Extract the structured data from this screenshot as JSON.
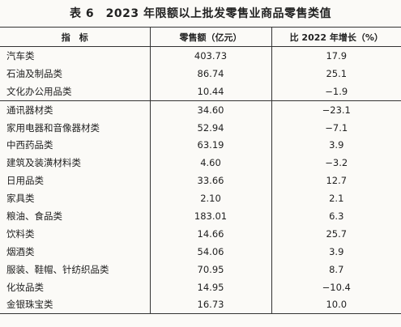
{
  "title": "表 6　2023 年限额以上批发零售业商品零售类值",
  "table": {
    "header": [
      "指　标",
      "零售额（亿元）",
      "比 2022 年增长（%）"
    ],
    "rows": [
      [
        "汽车类",
        "403.73",
        "17.9"
      ],
      [
        "石油及制品类",
        "86.74",
        "25.1"
      ],
      [
        "文化办公用品类",
        "10.44",
        "−1.9"
      ],
      [
        "通讯器材类",
        "34.60",
        "−23.1"
      ],
      [
        "家用电器和音像器材类",
        "52.94",
        "−7.1"
      ],
      [
        "中西药品类",
        "63.19",
        "3.9"
      ],
      [
        "建筑及装潢材料类",
        "4.60",
        "−3.2"
      ],
      [
        "日用品类",
        "33.66",
        "12.7"
      ],
      [
        "家具类",
        "2.10",
        "2.1"
      ],
      [
        "粮油、食品类",
        "183.01",
        "6.3"
      ],
      [
        "饮料类",
        "14.66",
        "25.7"
      ],
      [
        "烟酒类",
        "54.06",
        "3.9"
      ],
      [
        "服装、鞋帽、针纺织品类",
        "70.95",
        "8.7"
      ],
      [
        "化妆品类",
        "14.95",
        "−10.4"
      ],
      [
        "金银珠宝类",
        "16.73",
        "10.0"
      ]
    ]
  }
}
